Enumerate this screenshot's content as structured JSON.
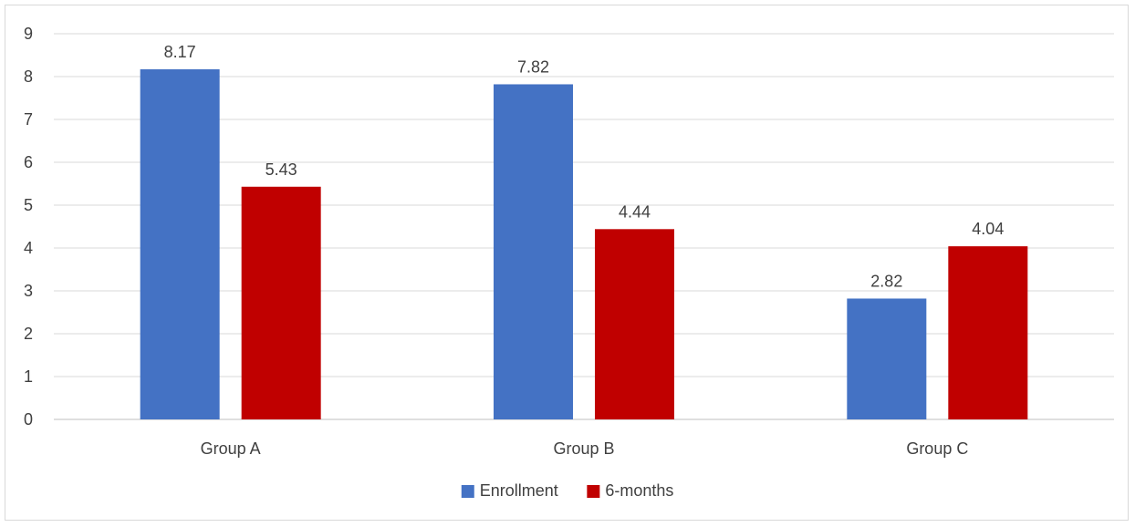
{
  "chart_data": {
    "type": "bar",
    "categories": [
      "Group A",
      "Group B",
      "Group C"
    ],
    "series": [
      {
        "name": "Enrollment",
        "values": [
          8.17,
          7.82,
          2.82
        ],
        "color": "#4472C4"
      },
      {
        "name": "6-months",
        "values": [
          5.43,
          4.44,
          4.04
        ],
        "color": "#C00000"
      }
    ],
    "data_labels": [
      [
        "8.17",
        "7.82",
        "2.82"
      ],
      [
        "5.43",
        "4.44",
        "4.04"
      ]
    ],
    "title": "",
    "xlabel": "",
    "ylabel": "",
    "ylim": [
      0,
      9
    ],
    "yticks": [
      "0",
      "1",
      "2",
      "3",
      "4",
      "5",
      "6",
      "7",
      "8",
      "9"
    ],
    "grid": true,
    "legend_position": "bottom"
  }
}
